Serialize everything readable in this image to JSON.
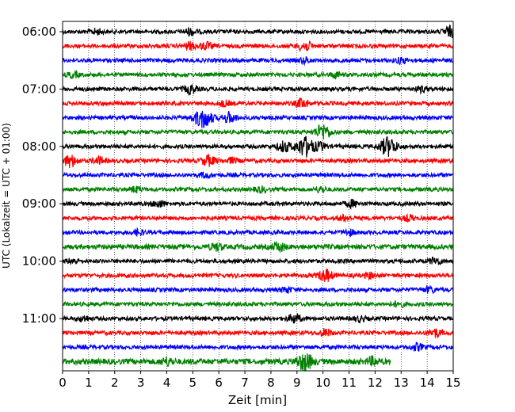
{
  "chart_data": {
    "type": "line",
    "title": "",
    "xlabel": "Zeit  [min]",
    "ylabel": "UTC (Lokalzeit = UTC + 01:00)",
    "xlim": [
      0,
      15
    ],
    "x_ticks": [
      "0",
      "1",
      "2",
      "3",
      "4",
      "5",
      "6",
      "7",
      "8",
      "9",
      "10",
      "11",
      "12",
      "13",
      "14",
      "15"
    ],
    "y_tick_labels": [
      "06:00",
      "07:00",
      "08:00",
      "09:00",
      "10:00",
      "11:00"
    ],
    "grid": "vertical dotted",
    "trace_colors": [
      "#000000",
      "#ff0000",
      "#0000ff",
      "#008000"
    ],
    "traces_per_hour": 4,
    "minutes_per_trace": 15,
    "start_time": "06:00",
    "traces": [
      {
        "start": "06:00",
        "color": "#000000",
        "end_min": 15,
        "amp": 2.5,
        "events": [
          {
            "t": 1.3,
            "a": 3
          },
          {
            "t": 4.9,
            "a": 4
          },
          {
            "t": 14.9,
            "a": 6
          }
        ]
      },
      {
        "start": "06:15",
        "color": "#ff0000",
        "end_min": 15,
        "amp": 2.5,
        "events": [
          {
            "t": 4.9,
            "a": 4
          },
          {
            "t": 5.5,
            "a": 4
          },
          {
            "t": 9.3,
            "a": 6
          }
        ]
      },
      {
        "start": "06:30",
        "color": "#0000ff",
        "end_min": 15,
        "amp": 2.5,
        "events": [
          {
            "t": 9.3,
            "a": 3
          },
          {
            "t": 13.0,
            "a": 3
          }
        ]
      },
      {
        "start": "06:45",
        "color": "#008000",
        "end_min": 15,
        "amp": 2.5,
        "events": [
          {
            "t": 0.4,
            "a": 3
          },
          {
            "t": 10.5,
            "a": 3
          }
        ]
      },
      {
        "start": "07:00",
        "color": "#000000",
        "end_min": 15,
        "amp": 2.5,
        "events": [
          {
            "t": 4.9,
            "a": 5
          },
          {
            "t": 13.8,
            "a": 3
          }
        ]
      },
      {
        "start": "07:15",
        "color": "#ff0000",
        "end_min": 15,
        "amp": 2.5,
        "events": [
          {
            "t": 6.2,
            "a": 3
          },
          {
            "t": 9.2,
            "a": 5
          }
        ]
      },
      {
        "start": "07:30",
        "color": "#0000ff",
        "end_min": 15,
        "amp": 2.5,
        "events": [
          {
            "t": 5.4,
            "a": 12
          },
          {
            "t": 6.4,
            "a": 6
          }
        ]
      },
      {
        "start": "07:45",
        "color": "#008000",
        "end_min": 15,
        "amp": 2.5,
        "events": [
          {
            "t": 10.0,
            "a": 9
          }
        ]
      },
      {
        "start": "08:00",
        "color": "#000000",
        "end_min": 15,
        "amp": 2.5,
        "events": [
          {
            "t": 8.5,
            "a": 6
          },
          {
            "t": 9.3,
            "a": 12
          },
          {
            "t": 9.9,
            "a": 4
          },
          {
            "t": 12.5,
            "a": 11
          }
        ]
      },
      {
        "start": "08:15",
        "color": "#ff0000",
        "end_min": 15,
        "amp": 2.5,
        "events": [
          {
            "t": 0.3,
            "a": 7
          },
          {
            "t": 1.4,
            "a": 4
          },
          {
            "t": 5.6,
            "a": 6
          },
          {
            "t": 6.5,
            "a": 3
          }
        ]
      },
      {
        "start": "08:30",
        "color": "#0000ff",
        "end_min": 15,
        "amp": 2.5,
        "events": [
          {
            "t": 5.5,
            "a": 3
          }
        ]
      },
      {
        "start": "08:45",
        "color": "#008000",
        "end_min": 15,
        "amp": 2.5,
        "events": [
          {
            "t": 2.8,
            "a": 3
          },
          {
            "t": 7.6,
            "a": 3
          },
          {
            "t": 9.9,
            "a": 3
          }
        ]
      },
      {
        "start": "09:00",
        "color": "#000000",
        "end_min": 15,
        "amp": 2.5,
        "events": [
          {
            "t": 3.7,
            "a": 4
          },
          {
            "t": 11.1,
            "a": 4
          }
        ]
      },
      {
        "start": "09:15",
        "color": "#ff0000",
        "end_min": 15,
        "amp": 2.5,
        "events": [
          {
            "t": 10.8,
            "a": 3
          },
          {
            "t": 13.3,
            "a": 3
          }
        ]
      },
      {
        "start": "09:30",
        "color": "#0000ff",
        "end_min": 15,
        "amp": 2.5,
        "events": [
          {
            "t": 2.9,
            "a": 3
          },
          {
            "t": 11.0,
            "a": 3
          }
        ]
      },
      {
        "start": "09:45",
        "color": "#008000",
        "end_min": 15,
        "amp": 3,
        "events": [
          {
            "t": 5.9,
            "a": 4
          },
          {
            "t": 8.3,
            "a": 5
          }
        ]
      },
      {
        "start": "10:00",
        "color": "#000000",
        "end_min": 15,
        "amp": 2.5,
        "events": [
          {
            "t": 0.4,
            "a": 3
          },
          {
            "t": 14.3,
            "a": 4
          }
        ]
      },
      {
        "start": "10:15",
        "color": "#ff0000",
        "end_min": 15,
        "amp": 2.5,
        "events": [
          {
            "t": 10.1,
            "a": 7
          },
          {
            "t": 11.8,
            "a": 3
          }
        ]
      },
      {
        "start": "10:30",
        "color": "#0000ff",
        "end_min": 15,
        "amp": 2.5,
        "events": [
          {
            "t": 8.6,
            "a": 3
          },
          {
            "t": 14.1,
            "a": 3
          }
        ]
      },
      {
        "start": "10:45",
        "color": "#008000",
        "end_min": 15,
        "amp": 2.5,
        "events": [
          {
            "t": 12.9,
            "a": 3
          }
        ]
      },
      {
        "start": "11:00",
        "color": "#000000",
        "end_min": 15,
        "amp": 2.5,
        "events": [
          {
            "t": 0.8,
            "a": 3
          },
          {
            "t": 8.9,
            "a": 5
          },
          {
            "t": 11.4,
            "a": 3
          }
        ]
      },
      {
        "start": "11:15",
        "color": "#ff0000",
        "end_min": 15,
        "amp": 2.5,
        "events": [
          {
            "t": 10.1,
            "a": 4
          },
          {
            "t": 14.3,
            "a": 5
          }
        ]
      },
      {
        "start": "11:30",
        "color": "#0000ff",
        "end_min": 15,
        "amp": 2.5,
        "events": [
          {
            "t": 13.6,
            "a": 4
          }
        ]
      },
      {
        "start": "11:45",
        "color": "#008000",
        "end_min": 12.6,
        "amp": 3.5,
        "events": [
          {
            "t": 4.0,
            "a": 4
          },
          {
            "t": 9.3,
            "a": 10
          },
          {
            "t": 11.9,
            "a": 4
          }
        ]
      }
    ]
  }
}
